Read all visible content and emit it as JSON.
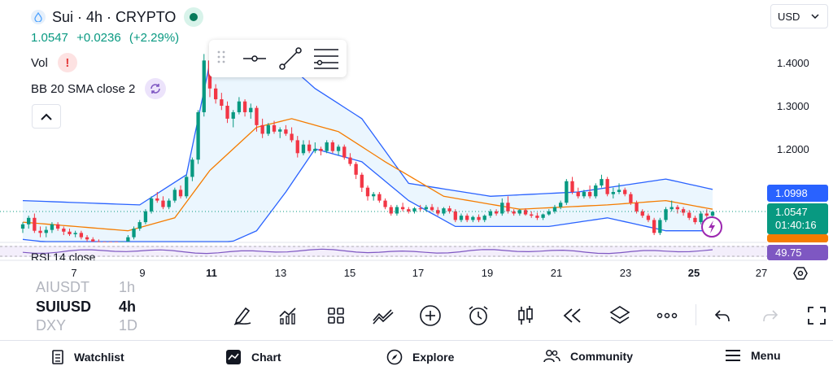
{
  "legend": {
    "symbol_title": "Sui · 4h · CRYPTO",
    "last_price": "1.0547",
    "change": "+0.0236",
    "change_pct": "(+2.29%)",
    "volume_label": "Vol",
    "volume_warning": "!",
    "bb_label": "BB 20 SMA close 2",
    "rsi_label": "RSI 14 close"
  },
  "currency": {
    "selected": "USD"
  },
  "price_axis": {
    "labels": [
      "1.4000",
      "1.3000",
      "1.2000"
    ],
    "upper_band_tag": "1.0998",
    "last_price_tag": "1.0547",
    "countdown": "01:40:16",
    "rsi_tag": "49.75"
  },
  "time_axis": {
    "ticks": [
      "7",
      "9",
      "11",
      "13",
      "15",
      "17",
      "19",
      "21",
      "23",
      "25",
      "27"
    ],
    "bold_ticks": [
      "11",
      "25"
    ]
  },
  "symbols": {
    "prev": {
      "name": "AIUSDT",
      "interval": "1h"
    },
    "active": {
      "name": "SUIUSD",
      "interval": "4h"
    },
    "next": {
      "name": "DXY",
      "interval": "1D"
    }
  },
  "toolbar_icons": [
    "pencil-icon",
    "indicators-icon",
    "templates-icon",
    "compare-icon",
    "add-icon",
    "alert-icon",
    "candle-style-icon",
    "replay-icon",
    "layers-icon",
    "more-icon",
    "undo-icon",
    "redo-icon",
    "fullscreen-icon"
  ],
  "nav": {
    "watchlist": "Watchlist",
    "chart": "Chart",
    "explore": "Explore",
    "community": "Community",
    "menu": "Menu"
  },
  "colors": {
    "up": "#089981",
    "down": "#f23645",
    "upper_band": "#2962ff",
    "basis": "#f57c00",
    "rsi": "#7e57c2",
    "band_fill": "#e3f2fd"
  },
  "chart_data": {
    "type": "candlestick",
    "interval": "4h",
    "price_range": [
      1.0,
      1.42
    ],
    "candles": [
      [
        1.015,
        1.03,
        1.005,
        1.025
      ],
      [
        1.025,
        1.045,
        1.015,
        1.04
      ],
      [
        1.04,
        1.05,
        1.005,
        1.01
      ],
      [
        1.01,
        1.02,
        0.995,
        1.005
      ],
      [
        1.005,
        1.02,
        0.995,
        1.012
      ],
      [
        1.012,
        1.03,
        1.005,
        1.025
      ],
      [
        1.025,
        1.03,
        1.01,
        1.015
      ],
      [
        1.015,
        1.02,
        1.0,
        1.008
      ],
      [
        1.008,
        1.015,
        0.998,
        1.002
      ],
      [
        1.002,
        1.01,
        0.995,
        1.005
      ],
      [
        1.005,
        1.01,
        0.99,
        0.995
      ],
      [
        0.995,
        1.0,
        0.985,
        0.99
      ],
      [
        0.99,
        0.995,
        0.98,
        0.985
      ],
      [
        0.985,
        0.99,
        0.975,
        0.98
      ],
      [
        0.98,
        0.985,
        0.97,
        0.975
      ],
      [
        0.975,
        0.98,
        0.965,
        0.97
      ],
      [
        0.97,
        0.975,
        0.96,
        0.965
      ],
      [
        0.965,
        0.975,
        0.955,
        0.97
      ],
      [
        0.97,
        1.0,
        0.965,
        0.995
      ],
      [
        0.995,
        1.02,
        0.99,
        1.015
      ],
      [
        1.015,
        1.035,
        1.01,
        1.03
      ],
      [
        1.03,
        1.06,
        1.025,
        1.055
      ],
      [
        1.055,
        1.09,
        1.05,
        1.085
      ],
      [
        1.085,
        1.1,
        1.075,
        1.08
      ],
      [
        1.08,
        1.09,
        1.06,
        1.065
      ],
      [
        1.065,
        1.085,
        1.06,
        1.08
      ],
      [
        1.08,
        1.11,
        1.075,
        1.105
      ],
      [
        1.105,
        1.115,
        1.085,
        1.09
      ],
      [
        1.09,
        1.14,
        1.085,
        1.135
      ],
      [
        1.135,
        1.18,
        1.125,
        1.175
      ],
      [
        1.175,
        1.29,
        1.165,
        1.285
      ],
      [
        1.285,
        1.42,
        1.275,
        1.405
      ],
      [
        1.405,
        1.41,
        1.32,
        1.34
      ],
      [
        1.34,
        1.35,
        1.305,
        1.315
      ],
      [
        1.315,
        1.33,
        1.29,
        1.3
      ],
      [
        1.3,
        1.31,
        1.26,
        1.27
      ],
      [
        1.27,
        1.29,
        1.25,
        1.285
      ],
      [
        1.285,
        1.32,
        1.28,
        1.31
      ],
      [
        1.31,
        1.315,
        1.275,
        1.285
      ],
      [
        1.285,
        1.305,
        1.27,
        1.295
      ],
      [
        1.295,
        1.3,
        1.24,
        1.255
      ],
      [
        1.255,
        1.27,
        1.225,
        1.235
      ],
      [
        1.235,
        1.26,
        1.23,
        1.255
      ],
      [
        1.255,
        1.265,
        1.235,
        1.24
      ],
      [
        1.24,
        1.25,
        1.225,
        1.245
      ],
      [
        1.245,
        1.255,
        1.23,
        1.235
      ],
      [
        1.235,
        1.25,
        1.215,
        1.22
      ],
      [
        1.22,
        1.23,
        1.18,
        1.19
      ],
      [
        1.19,
        1.22,
        1.185,
        1.21
      ],
      [
        1.21,
        1.22,
        1.19,
        1.195
      ],
      [
        1.195,
        1.215,
        1.19,
        1.2
      ],
      [
        1.2,
        1.205,
        1.185,
        1.195
      ],
      [
        1.195,
        1.22,
        1.19,
        1.215
      ],
      [
        1.215,
        1.22,
        1.19,
        1.195
      ],
      [
        1.195,
        1.21,
        1.185,
        1.205
      ],
      [
        1.205,
        1.21,
        1.175,
        1.18
      ],
      [
        1.18,
        1.19,
        1.16,
        1.165
      ],
      [
        1.165,
        1.17,
        1.13,
        1.14
      ],
      [
        1.14,
        1.145,
        1.1,
        1.11
      ],
      [
        1.11,
        1.115,
        1.08,
        1.09
      ],
      [
        1.09,
        1.1,
        1.08,
        1.095
      ],
      [
        1.095,
        1.1,
        1.075,
        1.08
      ],
      [
        1.08,
        1.085,
        1.06,
        1.065
      ],
      [
        1.065,
        1.07,
        1.045,
        1.05
      ],
      [
        1.05,
        1.07,
        1.045,
        1.065
      ],
      [
        1.065,
        1.075,
        1.055,
        1.06
      ],
      [
        1.06,
        1.065,
        1.05,
        1.055
      ],
      [
        1.055,
        1.065,
        1.05,
        1.062
      ],
      [
        1.062,
        1.07,
        1.055,
        1.06
      ],
      [
        1.06,
        1.07,
        1.055,
        1.065
      ],
      [
        1.065,
        1.072,
        1.055,
        1.058
      ],
      [
        1.058,
        1.065,
        1.045,
        1.05
      ],
      [
        1.05,
        1.065,
        1.045,
        1.062
      ],
      [
        1.062,
        1.068,
        1.05,
        1.055
      ],
      [
        1.055,
        1.06,
        1.03,
        1.035
      ],
      [
        1.035,
        1.05,
        1.03,
        1.045
      ],
      [
        1.045,
        1.05,
        1.03,
        1.035
      ],
      [
        1.035,
        1.045,
        1.03,
        1.042
      ],
      [
        1.042,
        1.048,
        1.03,
        1.035
      ],
      [
        1.035,
        1.048,
        1.03,
        1.045
      ],
      [
        1.045,
        1.06,
        1.04,
        1.055
      ],
      [
        1.055,
        1.06,
        1.045,
        1.05
      ],
      [
        1.05,
        1.085,
        1.045,
        1.075
      ],
      [
        1.075,
        1.09,
        1.05,
        1.055
      ],
      [
        1.055,
        1.06,
        1.045,
        1.05
      ],
      [
        1.05,
        1.06,
        1.045,
        1.058
      ],
      [
        1.058,
        1.062,
        1.045,
        1.048
      ],
      [
        1.048,
        1.055,
        1.04,
        1.045
      ],
      [
        1.045,
        1.052,
        1.035,
        1.04
      ],
      [
        1.04,
        1.05,
        1.035,
        1.048
      ],
      [
        1.048,
        1.06,
        1.045,
        1.055
      ],
      [
        1.055,
        1.07,
        1.05,
        1.065
      ],
      [
        1.065,
        1.08,
        1.06,
        1.075
      ],
      [
        1.075,
        1.13,
        1.07,
        1.125
      ],
      [
        1.125,
        1.135,
        1.095,
        1.1
      ],
      [
        1.1,
        1.11,
        1.085,
        1.09
      ],
      [
        1.09,
        1.105,
        1.085,
        1.1
      ],
      [
        1.1,
        1.115,
        1.085,
        1.09
      ],
      [
        1.09,
        1.12,
        1.085,
        1.115
      ],
      [
        1.115,
        1.14,
        1.11,
        1.13
      ],
      [
        1.13,
        1.135,
        1.09,
        1.095
      ],
      [
        1.095,
        1.11,
        1.085,
        1.1
      ],
      [
        1.1,
        1.12,
        1.095,
        1.105
      ],
      [
        1.105,
        1.11,
        1.09,
        1.095
      ],
      [
        1.095,
        1.1,
        1.07,
        1.075
      ],
      [
        1.075,
        1.08,
        1.05,
        1.055
      ],
      [
        1.055,
        1.06,
        1.04,
        1.045
      ],
      [
        1.045,
        1.05,
        1.03,
        1.035
      ],
      [
        1.035,
        1.04,
        1.0,
        1.005
      ],
      [
        1.005,
        1.04,
        1.0,
        1.035
      ],
      [
        1.035,
        1.065,
        1.03,
        1.06
      ],
      [
        1.06,
        1.08,
        1.055,
        1.065
      ],
      [
        1.065,
        1.07,
        1.05,
        1.06
      ],
      [
        1.06,
        1.065,
        1.045,
        1.052
      ],
      [
        1.052,
        1.058,
        1.035,
        1.04
      ],
      [
        1.04,
        1.045,
        1.025,
        1.03
      ],
      [
        1.03,
        1.055,
        1.025,
        1.05
      ],
      [
        1.05,
        1.06,
        1.04,
        1.045
      ],
      [
        1.045,
        1.056,
        1.04,
        1.054
      ]
    ],
    "bollinger": {
      "upper": [
        [
          0,
          1.08
        ],
        [
          20,
          1.07
        ],
        [
          28,
          1.14
        ],
        [
          32,
          1.4
        ],
        [
          38,
          1.45
        ],
        [
          45,
          1.4
        ],
        [
          50,
          1.34
        ],
        [
          58,
          1.27
        ],
        [
          66,
          1.12
        ],
        [
          80,
          1.09
        ],
        [
          95,
          1.1
        ],
        [
          110,
          1.13
        ],
        [
          120,
          1.1
        ]
      ],
      "basis": [
        [
          0,
          1.03
        ],
        [
          18,
          1.01
        ],
        [
          26,
          1.04
        ],
        [
          32,
          1.15
        ],
        [
          40,
          1.25
        ],
        [
          46,
          1.27
        ],
        [
          54,
          1.24
        ],
        [
          62,
          1.17
        ],
        [
          72,
          1.09
        ],
        [
          85,
          1.06
        ],
        [
          100,
          1.07
        ],
        [
          110,
          1.08
        ],
        [
          120,
          1.055
        ]
      ],
      "lower": [
        [
          0,
          0.99
        ],
        [
          20,
          0.96
        ],
        [
          30,
          0.95
        ],
        [
          40,
          1.01
        ],
        [
          45,
          1.1
        ],
        [
          50,
          1.2
        ],
        [
          58,
          1.17
        ],
        [
          66,
          1.08
        ],
        [
          74,
          1.02
        ],
        [
          90,
          1.02
        ],
        [
          100,
          1.04
        ],
        [
          110,
          1.01
        ],
        [
          120,
          1.01
        ]
      ]
    },
    "rsi": {
      "label": "RSI 14 close",
      "last": 49.75
    }
  }
}
